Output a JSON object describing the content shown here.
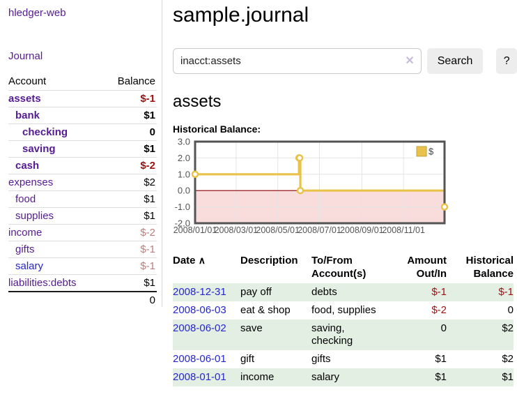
{
  "app": {
    "title": "hledger-web"
  },
  "sidebar": {
    "journal_label": "Journal",
    "header": {
      "account": "Account",
      "balance": "Balance"
    },
    "accounts": [
      {
        "name": "assets",
        "balance": "$-1",
        "indent": 0,
        "bold": true,
        "name_color": "purple",
        "balance_color": "neg-strong"
      },
      {
        "name": "bank",
        "balance": "$1",
        "indent": 1,
        "bold": true,
        "name_color": "purple",
        "balance_color": "normal"
      },
      {
        "name": "checking",
        "balance": "0",
        "indent": 2,
        "bold": true,
        "name_color": "purple",
        "balance_color": "normal"
      },
      {
        "name": "saving",
        "balance": "$1",
        "indent": 2,
        "bold": true,
        "name_color": "purple",
        "balance_color": "normal"
      },
      {
        "name": "cash",
        "balance": "$-2",
        "indent": 1,
        "bold": true,
        "name_color": "purple",
        "balance_color": "neg-strong"
      },
      {
        "name": "expenses",
        "balance": "$2",
        "indent": 0,
        "bold": false,
        "name_color": "purple",
        "balance_color": "normal"
      },
      {
        "name": "food",
        "balance": "$1",
        "indent": 1,
        "bold": false,
        "name_color": "purple",
        "balance_color": "normal"
      },
      {
        "name": "supplies",
        "balance": "$1",
        "indent": 1,
        "bold": false,
        "name_color": "purple",
        "balance_color": "normal"
      },
      {
        "name": "income",
        "balance": "$-2",
        "indent": 0,
        "bold": false,
        "name_color": "purple",
        "balance_color": "neg-soft"
      },
      {
        "name": "gifts",
        "balance": "$-1",
        "indent": 1,
        "bold": false,
        "name_color": "purple",
        "balance_color": "neg-soft"
      },
      {
        "name": "salary",
        "balance": "$-1",
        "indent": 1,
        "bold": false,
        "name_color": "blue",
        "balance_color": "neg-soft"
      },
      {
        "name": "liabilities:debts",
        "balance": "$1",
        "indent": 0,
        "bold": false,
        "name_color": "purple",
        "balance_color": "normal"
      }
    ],
    "total": "0"
  },
  "main": {
    "title": "sample.journal",
    "search": {
      "value": "inacct:assets",
      "clear_icon": "✕",
      "button_label": "Search",
      "help_label": "?"
    },
    "account_heading": "assets",
    "register": {
      "headers": {
        "date": "Date",
        "sort_icon": "∧",
        "description": "Description",
        "accounts": "To/From Account(s)",
        "amount": "Amount Out/In",
        "balance": "Historical Balance"
      },
      "rows": [
        {
          "date": "2008-12-31",
          "description": "pay off",
          "accounts": "debts",
          "amount": "$-1",
          "amount_color": "neg-strong",
          "balance": "$-1",
          "balance_color": "neg-strong",
          "shaded": true
        },
        {
          "date": "2008-06-03",
          "description": "eat & shop",
          "accounts": "food, supplies",
          "amount": "$-2",
          "amount_color": "neg-strong",
          "balance": "0",
          "balance_color": "normal",
          "shaded": false
        },
        {
          "date": "2008-06-02",
          "description": "save",
          "accounts": "saving, checking",
          "amount": "0",
          "amount_color": "normal",
          "balance": "$2",
          "balance_color": "normal",
          "shaded": true
        },
        {
          "date": "2008-06-01",
          "description": "gift",
          "accounts": "gifts",
          "amount": "$1",
          "amount_color": "normal",
          "balance": "$2",
          "balance_color": "normal",
          "shaded": false
        },
        {
          "date": "2008-01-01",
          "description": "income",
          "accounts": "salary",
          "amount": "$1",
          "amount_color": "normal",
          "balance": "$1",
          "balance_color": "normal",
          "shaded": true
        }
      ]
    }
  },
  "chart_data": {
    "type": "line",
    "title": "Historical Balance:",
    "step": true,
    "x_range_days": [
      0,
      365
    ],
    "x_ticks": [
      {
        "day": 0,
        "label": "2008/01/01"
      },
      {
        "day": 60,
        "label": "2008/03/01"
      },
      {
        "day": 121,
        "label": "2008/05/01"
      },
      {
        "day": 182,
        "label": "2008/07/01"
      },
      {
        "day": 244,
        "label": "2008/09/01"
      },
      {
        "day": 305,
        "label": "2008/11/01"
      }
    ],
    "y_ticks": [
      {
        "value": 3,
        "label": "3.0"
      },
      {
        "value": 2,
        "label": "2.0"
      },
      {
        "value": 1,
        "label": "1.0"
      },
      {
        "value": 0,
        "label": "0.0"
      },
      {
        "value": -1,
        "label": "-1.0"
      },
      {
        "value": -2,
        "label": "-2.0"
      }
    ],
    "ylim": [
      -2,
      3
    ],
    "grid": true,
    "legend": {
      "label": "$",
      "position": "top-right"
    },
    "series": [
      {
        "name": "$",
        "color": "#e8c24a",
        "points": [
          {
            "date": "2008-01-01",
            "day": 0,
            "y": 1
          },
          {
            "date": "2008-06-01",
            "day": 152,
            "y": 2
          },
          {
            "date": "2008-06-02",
            "day": 153,
            "y": 2
          },
          {
            "date": "2008-06-03",
            "day": 154,
            "y": 0
          },
          {
            "date": "2008-12-31",
            "day": 365,
            "y": -1
          }
        ]
      }
    ],
    "negative_region_color": "#f9dcdc",
    "zero_line_color": "#8b0000",
    "grid_color": "#e4e4e4",
    "border_color": "#545454",
    "tick_label_color": "#545454"
  },
  "colors": {
    "link_purple": "#551b92",
    "link_blue": "#2525d2",
    "neg_strong": "#9e1111",
    "neg_soft": "#bd7d7d",
    "row_green": "#e3efe3",
    "button_bg": "#ededed"
  }
}
